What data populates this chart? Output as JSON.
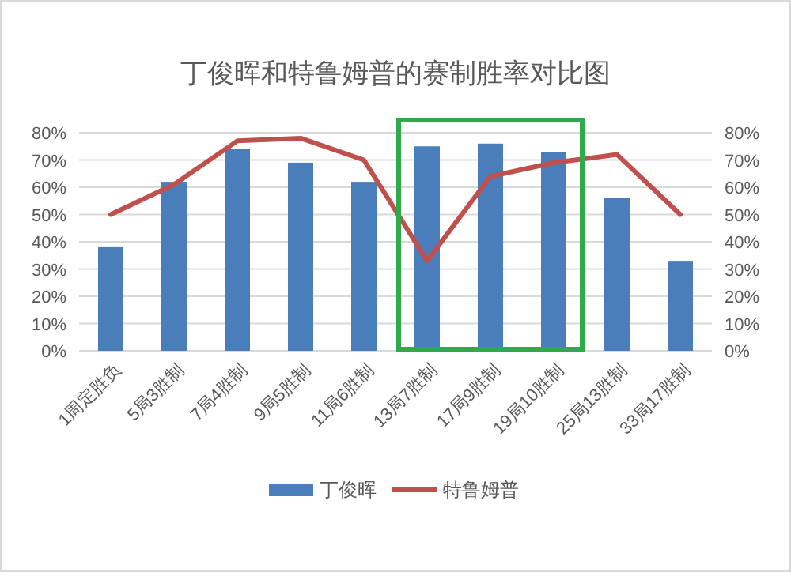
{
  "chart_data": {
    "type": "bar",
    "title": "丁俊晖和特鲁姆普的赛制胜率对比图",
    "categories": [
      "1周定胜负",
      "5局3胜制",
      "7局4胜制",
      "9局5胜制",
      "11局6胜制",
      "13局7胜制",
      "17局9胜制",
      "19局10胜制",
      "25局13胜制",
      "33局17胜制"
    ],
    "series": [
      {
        "name": "丁俊晖",
        "color": "#4a7ebb",
        "values": [
          38,
          62,
          74,
          69,
          62,
          75,
          76,
          73,
          56,
          33
        ]
      },
      {
        "name": "特鲁姆普",
        "type": "line",
        "color": "#c0504d",
        "values": [
          50,
          61,
          77,
          78,
          70,
          33,
          64,
          69,
          72,
          50
        ]
      }
    ],
    "ylim": [
      0,
      80
    ],
    "yticks": [
      {
        "value": 0,
        "label": "0%"
      },
      {
        "value": 10,
        "label": "10%"
      },
      {
        "value": 20,
        "label": "20%"
      },
      {
        "value": 30,
        "label": "30%"
      },
      {
        "value": 40,
        "label": "40%"
      },
      {
        "value": 50,
        "label": "50%"
      },
      {
        "value": 60,
        "label": "60%"
      },
      {
        "value": 70,
        "label": "70%"
      },
      {
        "value": 80,
        "label": "80%"
      }
    ],
    "y2lim": [
      0,
      80
    ],
    "y2ticks": [
      {
        "value": 0,
        "label": "0%"
      },
      {
        "value": 10,
        "label": "10%"
      },
      {
        "value": 20,
        "label": "20%"
      },
      {
        "value": 30,
        "label": "30%"
      },
      {
        "value": 40,
        "label": "40%"
      },
      {
        "value": 50,
        "label": "50%"
      },
      {
        "value": 60,
        "label": "60%"
      },
      {
        "value": 70,
        "label": "70%"
      },
      {
        "value": 80,
        "label": "80%"
      }
    ],
    "grid": "y",
    "legend": "bottom"
  }
}
